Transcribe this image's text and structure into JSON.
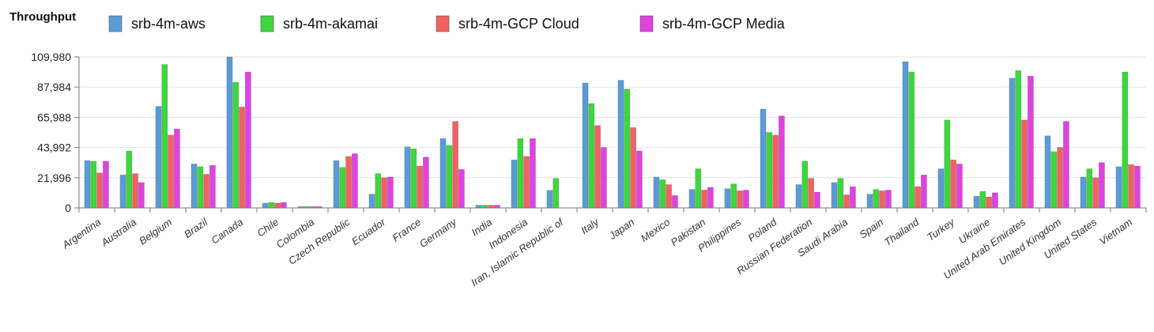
{
  "chart_data": {
    "type": "bar",
    "title": "Throughput",
    "xlabel": "",
    "ylabel": "",
    "ylim": [
      0,
      109980
    ],
    "yticks": [
      0,
      21996,
      43992,
      65988,
      87984,
      109980
    ],
    "ytick_labels": [
      "0",
      "21,996",
      "43,992",
      "65,988",
      "87,984",
      "109,980"
    ],
    "legend_position": "top",
    "categories": [
      "Argentina",
      "Australia",
      "Belgium",
      "Brazil",
      "Canada",
      "Chile",
      "Colombia",
      "Czech Republic",
      "Ecuador",
      "France",
      "Germany",
      "India",
      "Indonesia",
      "Iran, Islamic Republic of",
      "Italy",
      "Japan",
      "Mexico",
      "Pakistan",
      "Philippines",
      "Poland",
      "Russian Federation",
      "Saudi Arabia",
      "Spain",
      "Thailand",
      "Turkey",
      "Ukraine",
      "United Arab Emirates",
      "United Kingdom",
      "United States",
      "Vietnam"
    ],
    "series": [
      {
        "name": "srb-4m-aws",
        "color": "#5b9bd5",
        "values": [
          34500,
          24000,
          74000,
          32000,
          110000,
          3500,
          1000,
          34500,
          10000,
          44500,
          50500,
          2000,
          35000,
          12800,
          91000,
          93000,
          22500,
          13500,
          14000,
          72000,
          17000,
          18500,
          10000,
          106500,
          28500,
          8500,
          94500,
          52500,
          22500,
          30000
        ]
      },
      {
        "name": "srb-4m-akamai",
        "color": "#3dd63d",
        "values": [
          34000,
          41500,
          104500,
          30000,
          91500,
          4000,
          1000,
          29500,
          25000,
          43000,
          45500,
          2000,
          50500,
          21500,
          76000,
          86500,
          20500,
          28500,
          17500,
          55000,
          34000,
          21500,
          13500,
          99000,
          64000,
          12000,
          100000,
          41000,
          28500,
          99000
        ]
      },
      {
        "name": "srb-4m-GCP Cloud",
        "color": "#ef6262",
        "values": [
          25500,
          25000,
          53000,
          24500,
          73500,
          3500,
          1000,
          37500,
          22000,
          30500,
          63000,
          2000,
          37500,
          0,
          60000,
          58500,
          17000,
          13000,
          12500,
          53000,
          21500,
          9500,
          12500,
          15500,
          35000,
          8000,
          64000,
          44000,
          22000,
          31500
        ]
      },
      {
        "name": "srb-4m-GCP Media",
        "color": "#de43de",
        "values": [
          34000,
          18500,
          57500,
          31000,
          99000,
          4000,
          1000,
          39500,
          22500,
          37000,
          28000,
          2000,
          50500,
          0,
          44000,
          41500,
          9000,
          15000,
          13000,
          67000,
          11500,
          15500,
          13000,
          24000,
          32000,
          11000,
          96000,
          63000,
          33000,
          30500
        ]
      }
    ]
  }
}
